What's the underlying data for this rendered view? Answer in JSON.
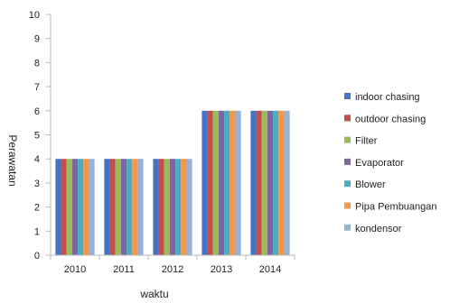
{
  "chart_data": {
    "type": "bar",
    "categories": [
      "2010",
      "2011",
      "2012",
      "2013",
      "2014"
    ],
    "series": [
      {
        "name": "indoor chasing",
        "color": "#4472c4",
        "values": [
          4,
          4,
          4,
          6,
          6
        ]
      },
      {
        "name": "outdoor chasing",
        "color": "#c0504d",
        "values": [
          4,
          4,
          4,
          6,
          6
        ]
      },
      {
        "name": "Filter",
        "color": "#9bbb59",
        "values": [
          4,
          4,
          4,
          6,
          6
        ]
      },
      {
        "name": "Evaporator",
        "color": "#8064a2",
        "values": [
          4,
          4,
          4,
          6,
          6
        ]
      },
      {
        "name": "Blower",
        "color": "#4bacc6",
        "values": [
          4,
          4,
          4,
          6,
          6
        ]
      },
      {
        "name": "Pipa Pembuangan",
        "color": "#f79646",
        "values": [
          4,
          4,
          4,
          6,
          6
        ]
      },
      {
        "name": "kondensor",
        "color": "#95b3d7",
        "values": [
          4,
          4,
          4,
          6,
          6
        ]
      }
    ],
    "xlabel": "waktu",
    "ylabel": "Perawatan",
    "ylim": [
      0,
      10
    ],
    "yticks": [
      0,
      1,
      2,
      3,
      4,
      5,
      6,
      7,
      8,
      9,
      10
    ],
    "grid": false,
    "legend": "right"
  }
}
